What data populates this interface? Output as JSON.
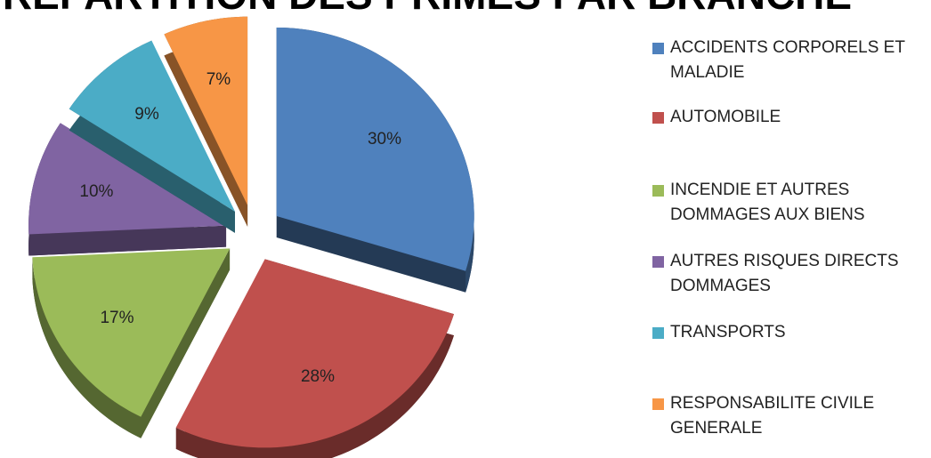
{
  "chart_data": {
    "type": "pie",
    "title": "REPARTITION DES PRIMES PAR BRANCHE",
    "categories": [
      "ACCIDENTS CORPORELS ET MALADIE",
      "AUTOMOBILE",
      "INCENDIE ET AUTRES DOMMAGES AUX BIENS",
      "AUTRES RISQUES DIRECTS DOMMAGES",
      "TRANSPORTS",
      "RESPONSABILITE CIVILE GENERALE"
    ],
    "values": [
      30,
      28,
      17,
      10,
      9,
      7
    ],
    "value_labels": [
      "30%",
      "28%",
      "17%",
      "10%",
      "9%",
      "7%"
    ],
    "colors": [
      "#4f81bd",
      "#c0504d",
      "#9bbb59",
      "#8064a2",
      "#4bacc6",
      "#f79646"
    ],
    "legend": "right"
  }
}
